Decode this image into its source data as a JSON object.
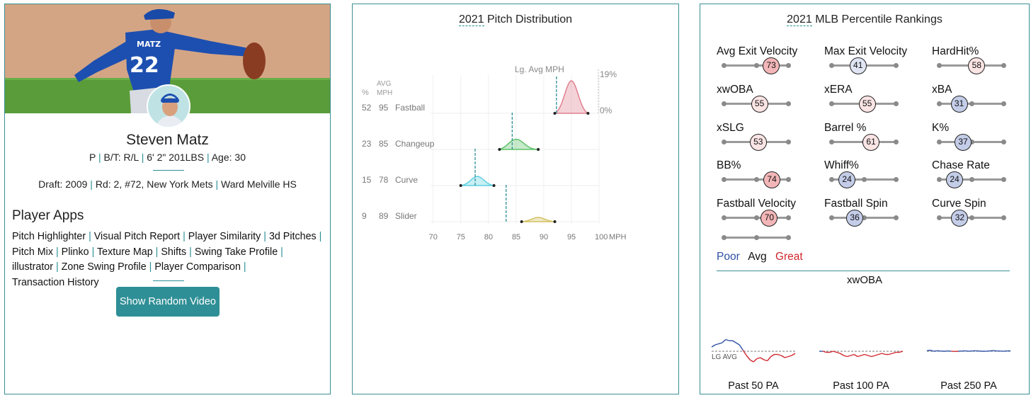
{
  "player_card": {
    "name": "Steven Matz",
    "jersey_name": "MATZ",
    "jersey_number": "22",
    "info": [
      "P",
      "B/T: R/L",
      "6' 2\" 201LBS",
      "Age: 30"
    ],
    "draft": {
      "year_label": "Draft: 2009",
      "pick": "Rd: 2, #72,",
      "team": "New York Mets",
      "school": "Ward Melville HS"
    },
    "apps_title": "Player Apps",
    "apps": [
      "Pitch Highlighter",
      "Visual Pitch Report",
      "Player Similarity",
      "3d Pitches",
      "Pitch Mix",
      "Plinko",
      "Texture Map",
      "Shifts",
      "Swing Take Profile",
      "illustrator",
      "Zone Swing Profile",
      "Player Comparison",
      "Transaction History"
    ],
    "button_label": "Show Random Video",
    "colors": {
      "accent": "#2f8f96",
      "jersey": "#1d4fb0"
    }
  },
  "pitch_distribution": {
    "year": "2021",
    "title_rest": "Pitch Distribution",
    "col_pct": "%",
    "col_avg": "AVG",
    "col_mph": "MPH",
    "lg_avg_label": "Lg. Avg MPH",
    "scale_max": "19%",
    "scale_min": "0%",
    "x_unit": "MPH",
    "chart_data": {
      "type": "area",
      "x_ticks": [
        70,
        75,
        80,
        85,
        90,
        95,
        100
      ],
      "xlim": [
        68,
        100
      ],
      "pitches": [
        {
          "name": "Fastball",
          "pct": 52,
          "avg_mph": 95,
          "lg_avg_mph": 92.3,
          "range": [
            92,
            98
          ],
          "peak": 1.0,
          "color": "#e0808f"
        },
        {
          "name": "Changeup",
          "pct": 23,
          "avg_mph": 85,
          "lg_avg_mph": 84.3,
          "range": [
            82,
            89
          ],
          "peak": 0.33,
          "color": "#5ec26a"
        },
        {
          "name": "Curve",
          "pct": 15,
          "avg_mph": 78,
          "lg_avg_mph": 77.6,
          "range": [
            75,
            81
          ],
          "peak": 0.28,
          "color": "#5fd0e0"
        },
        {
          "name": "Slider",
          "pct": 9,
          "avg_mph": 89,
          "lg_avg_mph": 83.2,
          "range": [
            86,
            92
          ],
          "peak": 0.13,
          "color": "#d2c060"
        }
      ]
    }
  },
  "percentiles": {
    "year": "2021",
    "title_rest": "MLB Percentile Rankings",
    "stats": [
      {
        "label": "Avg Exit Velocity",
        "value": 73
      },
      {
        "label": "Max Exit Velocity",
        "value": 41
      },
      {
        "label": "HardHit%",
        "value": 58
      },
      {
        "label": "xwOBA",
        "value": 55
      },
      {
        "label": "xERA",
        "value": 55
      },
      {
        "label": "xBA",
        "value": 31
      },
      {
        "label": "xSLG",
        "value": 53
      },
      {
        "label": "Barrel %",
        "value": 61
      },
      {
        "label": "K%",
        "value": 37
      },
      {
        "label": "BB%",
        "value": 74
      },
      {
        "label": "Whiff%",
        "value": 24
      },
      {
        "label": "Chase Rate",
        "value": 24
      },
      {
        "label": "Fastball Velocity",
        "value": 70
      },
      {
        "label": "Fastball Spin",
        "value": 36
      },
      {
        "label": "Curve Spin",
        "value": 32
      }
    ],
    "legend": {
      "poor": "Poor",
      "avg": "Avg",
      "great": "Great"
    },
    "colors": {
      "poor": "#2d4fa3",
      "great": "#d0262e",
      "high_fill": "#f3b6b8",
      "mid_fill": "#fbe4e4",
      "low_fill": "#c4cde8",
      "lowmid_fill": "#e0e5f3"
    },
    "xwoba_title": "xwOBA",
    "lg_avg_label": "LG AVG",
    "sparklines": [
      {
        "label": "Past 50 PA",
        "values": [
          0.38,
          0.4,
          0.41,
          0.42,
          0.45,
          0.44,
          0.44,
          0.42,
          0.4,
          0.35,
          0.3,
          0.26,
          0.24,
          0.27,
          0.28,
          0.26,
          0.25,
          0.29,
          0.31,
          0.31,
          0.3,
          0.28,
          0.29,
          0.3,
          0.32
        ]
      },
      {
        "label": "Past 100 PA",
        "values": [
          0.34,
          0.34,
          0.33,
          0.33,
          0.34,
          0.33,
          0.32,
          0.3,
          0.29,
          0.3,
          0.31,
          0.29,
          0.3,
          0.31,
          0.3,
          0.29,
          0.3,
          0.31,
          0.32,
          0.31,
          0.31,
          0.32,
          0.33,
          0.33,
          0.34
        ]
      },
      {
        "label": "Past 250 PA",
        "values": [
          0.345,
          0.35,
          0.34,
          0.345,
          0.342,
          0.34,
          0.343,
          0.341,
          0.338,
          0.34,
          0.342,
          0.344,
          0.341,
          0.343,
          0.345,
          0.342,
          0.34,
          0.341,
          0.343,
          0.346,
          0.343,
          0.342,
          0.341,
          0.343,
          0.344
        ]
      }
    ],
    "lg_avg_value": 0.34
  }
}
